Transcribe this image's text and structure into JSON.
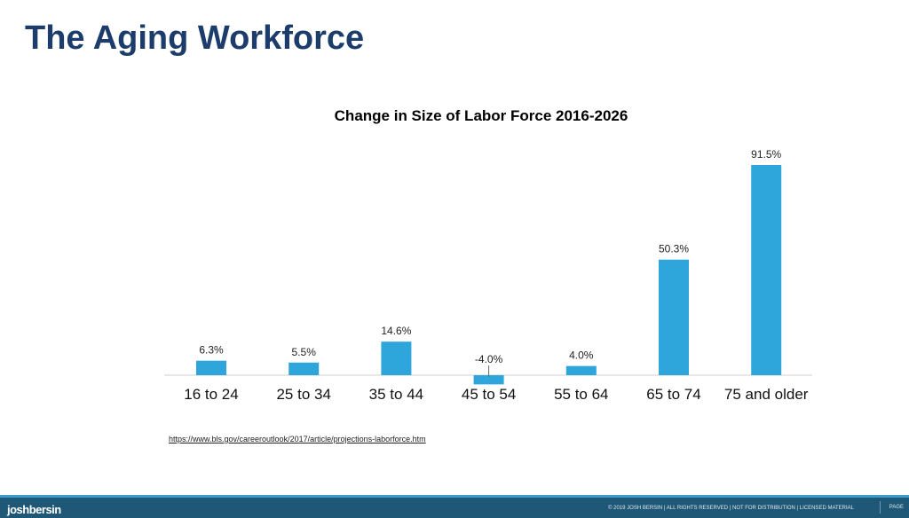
{
  "slide_title": "The Aging Workforce",
  "chart_data": {
    "type": "bar",
    "title": "Change in Size of Labor Force 2016-2026",
    "categories": [
      "16 to 24",
      "25 to 34",
      "35 to 44",
      "45 to 54",
      "55 to 64",
      "65 to 74",
      "75 and older"
    ],
    "values": [
      6.3,
      5.5,
      14.6,
      -4.0,
      4.0,
      50.3,
      91.5
    ],
    "data_labels": [
      "6.3%",
      "5.5%",
      "14.6%",
      "-4.0%",
      "4.0%",
      "50.3%",
      "91.5%"
    ],
    "xlabel": "",
    "ylabel": "",
    "grid": false,
    "color": "#2ea6dc"
  },
  "source_link": "https://www.bls.gov/careeroutlook/2017/article/projections-laborforce.htm",
  "footer": {
    "logo": "joshbersin",
    "copyright": "© 2019 JOSH BERSIN | ALL RIGHTS RESERVED | NOT FOR DISTRIBUTION | LICENSED MATERIAL",
    "page": "PAGE"
  }
}
